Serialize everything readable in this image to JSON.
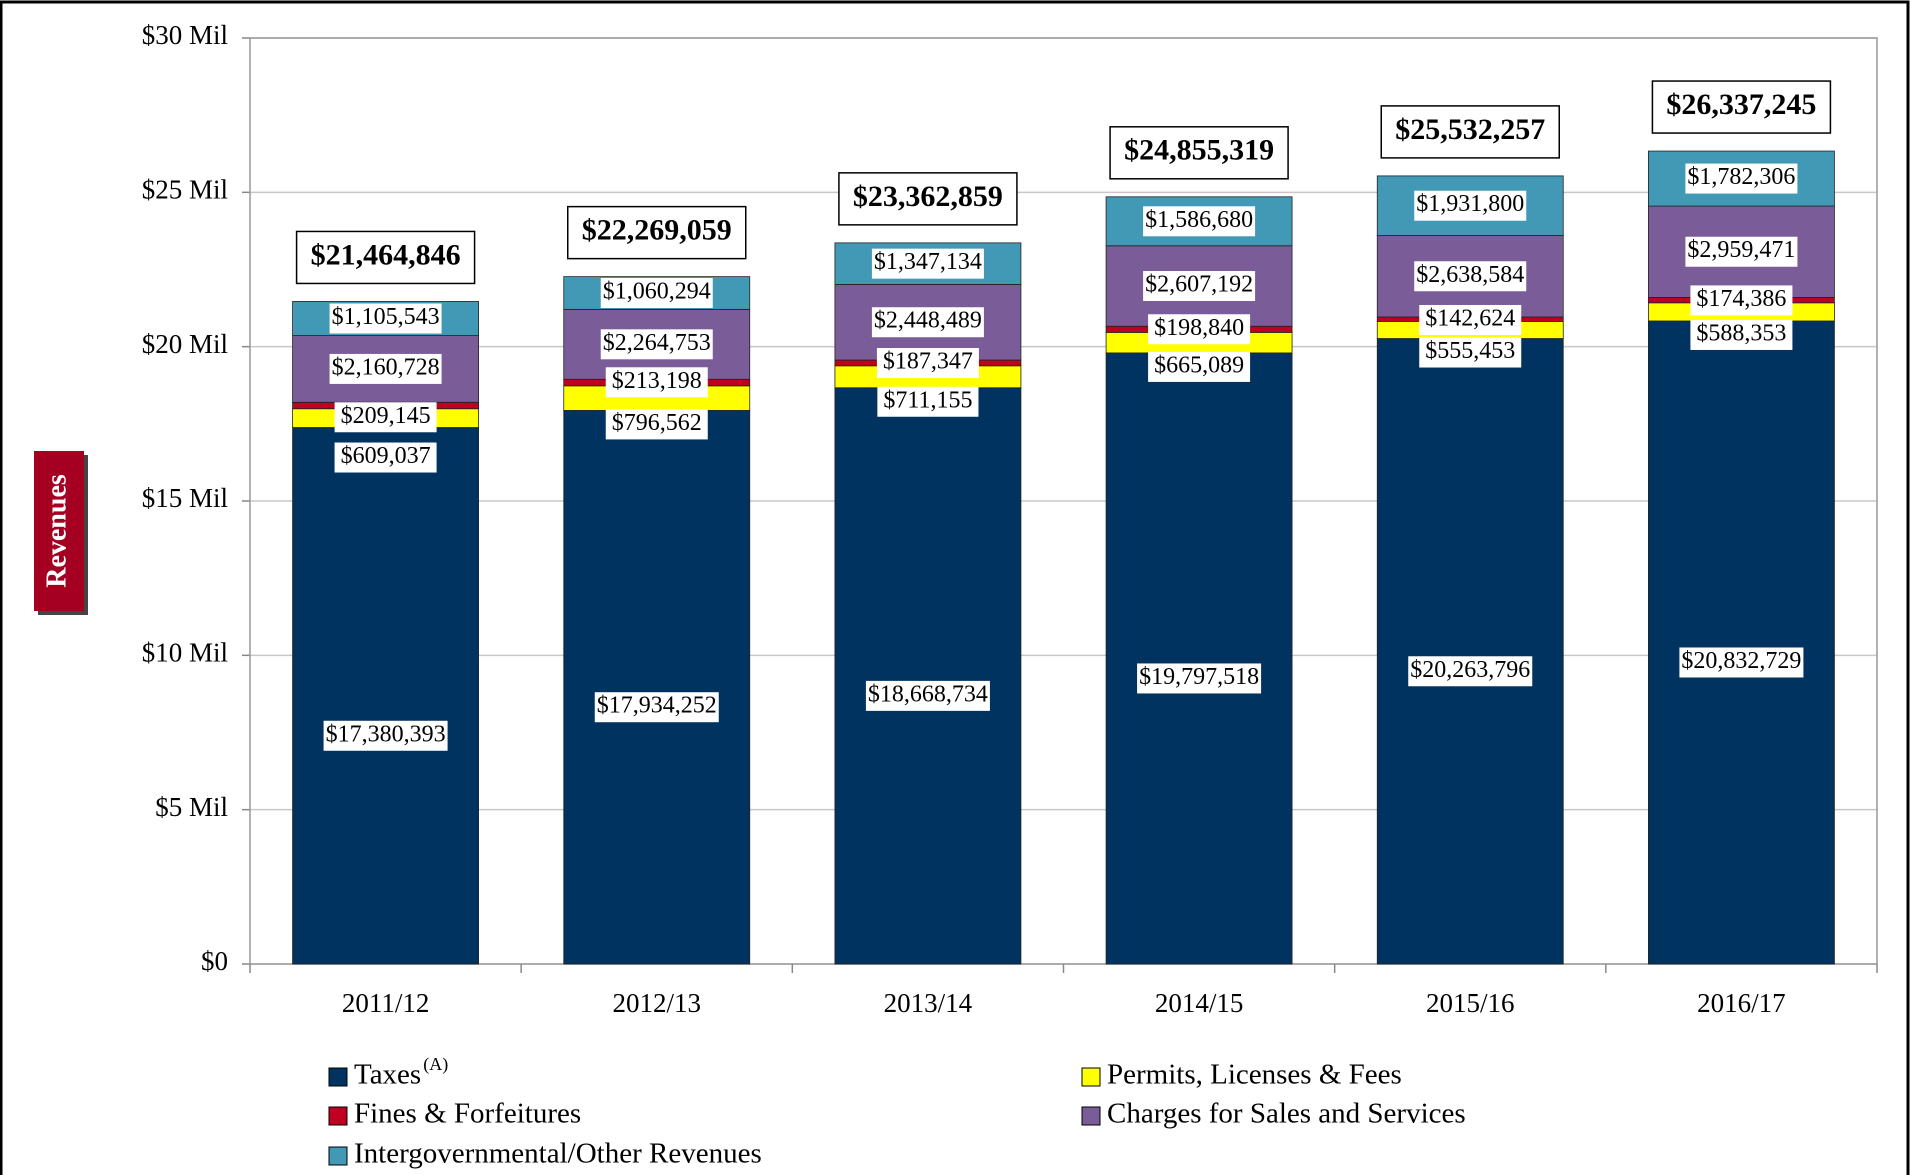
{
  "chart_data": {
    "type": "stacked_bar",
    "y_axis_label": "Revenues",
    "categories": [
      "2011/12",
      "2012/13",
      "2013/14",
      "2014/15",
      "2015/16",
      "2016/17"
    ],
    "series": [
      {
        "name": "Taxes",
        "name_superscript": "(A)",
        "color": "#00335f",
        "values": [
          17380393,
          17934252,
          18668734,
          19797518,
          20263796,
          20832729
        ],
        "value_labels": [
          "$17,380,393",
          "$17,934,252",
          "$18,668,734",
          "$19,797,518",
          "$20,263,796",
          "$20,832,729"
        ]
      },
      {
        "name": "Permits, Licenses & Fees",
        "color": "#ffff00",
        "values": [
          609037,
          796562,
          711155,
          665089,
          555453,
          588353
        ],
        "value_labels": [
          "$609,037",
          "$796,562",
          "$711,155",
          "$665,089",
          "$555,453",
          "$588,353"
        ]
      },
      {
        "name": "Fines & Forfeitures",
        "color": "#c00020",
        "values": [
          209145,
          213198,
          187347,
          198840,
          142624,
          174386
        ],
        "value_labels": [
          "$209,145",
          "$213,198",
          "$187,347",
          "$198,840",
          "$142,624",
          "$174,386"
        ]
      },
      {
        "name": "Charges for Sales and Services",
        "color": "#7a5c99",
        "values": [
          2160728,
          2264753,
          2448489,
          2607192,
          2638584,
          2959471
        ],
        "value_labels": [
          "$2,160,728",
          "$2,264,753",
          "$2,448,489",
          "$2,607,192",
          "$2,638,584",
          "$2,959,471"
        ]
      },
      {
        "name": "Intergovernmental/Other Revenues",
        "color": "#4199b5",
        "values": [
          1105543,
          1060294,
          1347134,
          1586680,
          1931800,
          1782306
        ],
        "value_labels": [
          "$1,105,543",
          "$1,060,294",
          "$1,347,134",
          "$1,586,680",
          "$1,931,800",
          "$1,782,306"
        ]
      }
    ],
    "totals": [
      21464846,
      22269059,
      23362859,
      24855319,
      25532257,
      26337245
    ],
    "totals_labels": [
      "$21,464,846",
      "$22,269,059",
      "$23,362,859",
      "$24,855,319",
      "$25,532,257",
      "$26,337,245"
    ],
    "ylim": [
      0,
      30000000
    ],
    "yticks": [
      {
        "value": 0,
        "label": "$0"
      },
      {
        "value": 5000000,
        "label": "$5 Mil"
      },
      {
        "value": 10000000,
        "label": "$10 Mil"
      },
      {
        "value": 15000000,
        "label": "$15 Mil"
      },
      {
        "value": 20000000,
        "label": "$20 Mil"
      },
      {
        "value": 25000000,
        "label": "$25 Mil"
      },
      {
        "value": 30000000,
        "label": "$30 Mil"
      }
    ],
    "grid": true,
    "legend": "bottom"
  }
}
